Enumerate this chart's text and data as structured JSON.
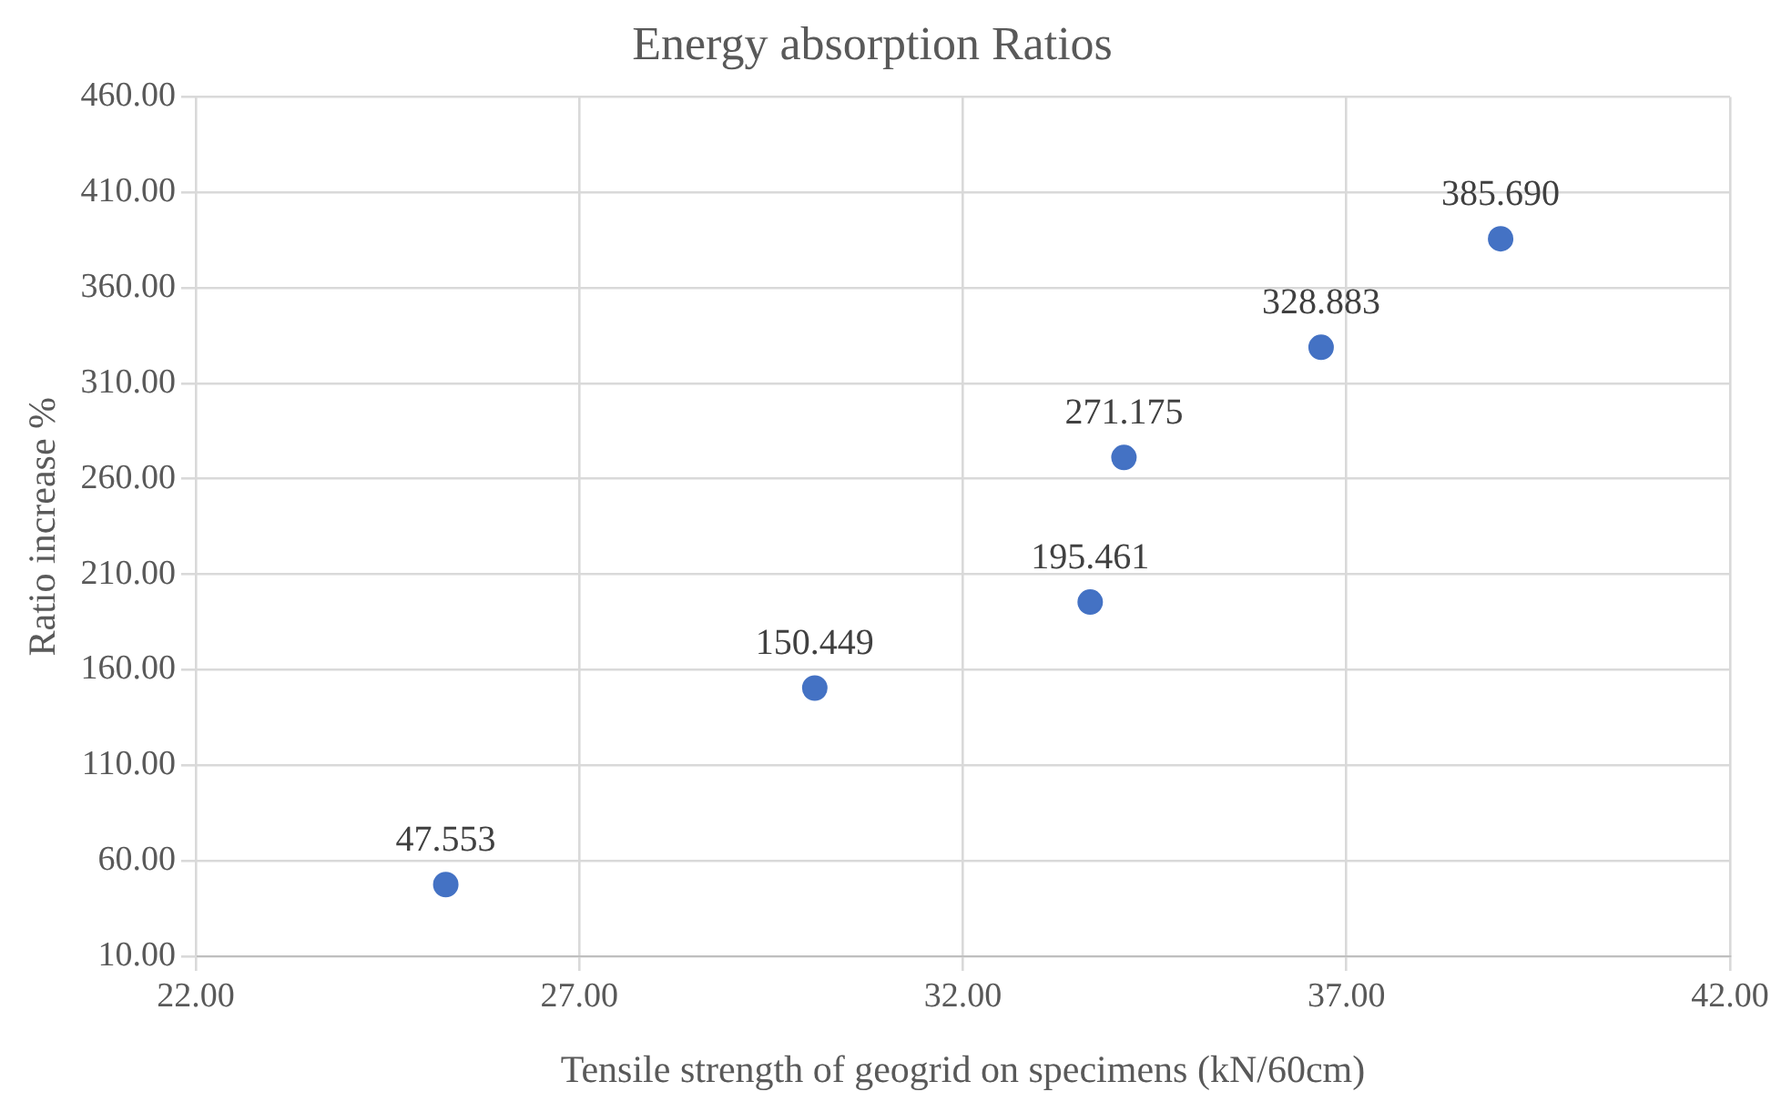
{
  "chart_data": {
    "type": "scatter",
    "title": "Energy absorption Ratios",
    "xlabel": "Tensile strength of geogrid on specimens (kN/60cm)",
    "ylabel": "Ratio increase %",
    "x": [
      25.26,
      30.07,
      33.66,
      34.1,
      36.67,
      39.01
    ],
    "series": [
      {
        "color": "#4472c4",
        "values": [
          47.553,
          150.449,
          195.461,
          271.175,
          328.883,
          385.69
        ],
        "value_labels": [
          "47.553",
          "150.449",
          "195.461",
          "271.175",
          "328.883",
          "385.690"
        ]
      }
    ],
    "xlim": [
      22,
      42
    ],
    "xticks": [
      {
        "value": 22,
        "label": "22.00"
      },
      {
        "value": 27,
        "label": "27.00"
      },
      {
        "value": 32,
        "label": "32.00"
      },
      {
        "value": 37,
        "label": "37.00"
      },
      {
        "value": 42,
        "label": "42.00"
      }
    ],
    "ylim": [
      10,
      460
    ],
    "yticks": [
      {
        "value": 10,
        "label": "10.00"
      },
      {
        "value": 60,
        "label": "60.00"
      },
      {
        "value": 110,
        "label": "110.00"
      },
      {
        "value": 160,
        "label": "160.00"
      },
      {
        "value": 210,
        "label": "210.00"
      },
      {
        "value": 260,
        "label": "260.00"
      },
      {
        "value": 310,
        "label": "310.00"
      },
      {
        "value": 360,
        "label": "360.00"
      },
      {
        "value": 410,
        "label": "410.00"
      },
      {
        "value": 460,
        "label": "460.00"
      }
    ],
    "grid": true,
    "marker": "circle",
    "legend": false
  }
}
